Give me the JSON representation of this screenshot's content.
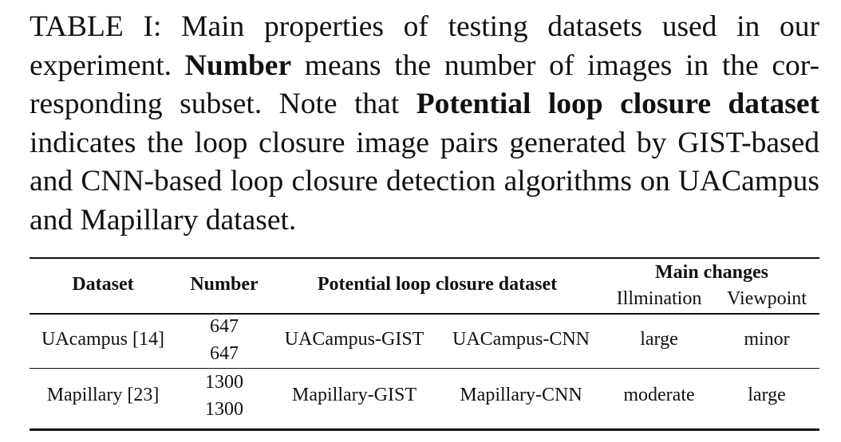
{
  "caption": {
    "t1": "TABLE I: Main properties of testing datasets used in our experiment. ",
    "b1": "Number",
    "t2": " means the number of images in the cor-responding subset. Note that ",
    "b2": "Potential loop closure dataset",
    "t3": " indicates the loop closure image pairs generated by GIST-based and CNN-based loop closure detection algorithms on UACampus and Mapillary dataset."
  },
  "table": {
    "headers": {
      "dataset": "Dataset",
      "number": "Number",
      "potential": "Potential loop closure dataset",
      "main_changes": "Main changes",
      "illumination": "Illmination",
      "viewpoint": "Viewpoint"
    },
    "rows": [
      {
        "dataset": "UAcampus [14]",
        "number_1": "647",
        "number_2": "647",
        "gist": "UACampus-GIST",
        "cnn": "UACampus-CNN",
        "illumination": "large",
        "viewpoint": "minor"
      },
      {
        "dataset": "Mapillary [23]",
        "number_1": "1300",
        "number_2": "1300",
        "gist": "Mapillary-GIST",
        "cnn": "Mapillary-CNN",
        "illumination": "moderate",
        "viewpoint": "large"
      }
    ]
  }
}
